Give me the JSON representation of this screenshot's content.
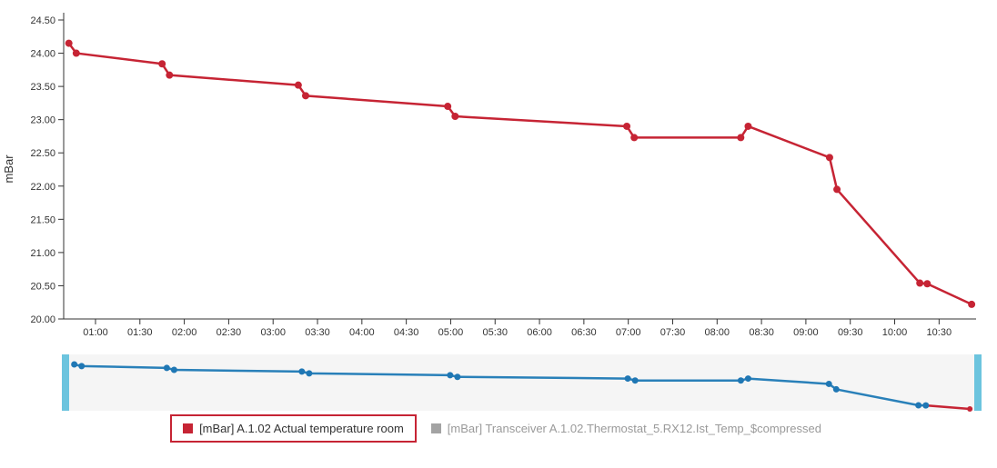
{
  "chart": {
    "colors": {
      "series_red": "#c62434",
      "series_blue": "#2980b9",
      "navigator_marker_blue": "#1f77b4",
      "navigator_handle": "#6cc4de",
      "navigator_bg": "#f5f5f5",
      "axis": "#333333",
      "tick_label": "#333333",
      "legend_active_text": "#333333",
      "legend_inactive_text": "#9a9a9a",
      "legend_inactive_marker": "#a3a3a3",
      "legend_box_border": "#c62434"
    }
  },
  "chart_data": {
    "type": "line",
    "title": "",
    "xlabel": "",
    "ylabel": "mBar",
    "ylim": [
      20.0,
      24.5
    ],
    "xlim": [
      "00:38",
      "10:55"
    ],
    "grid": false,
    "legend_position": "bottom",
    "x": [
      "00:42",
      "00:47",
      "01:45",
      "01:50",
      "03:17",
      "03:22",
      "04:58",
      "05:03",
      "06:59",
      "07:04",
      "08:16",
      "08:21",
      "09:16",
      "09:21",
      "10:17",
      "10:22",
      "10:52"
    ],
    "series": [
      {
        "name": "[mBar] A.1.02 Actual temperature room",
        "color": "#c62434",
        "values": [
          24.15,
          24.0,
          23.84,
          23.67,
          23.52,
          23.36,
          23.2,
          23.05,
          22.9,
          22.73,
          22.73,
          22.9,
          22.43,
          21.95,
          20.54,
          20.53,
          20.22
        ]
      }
    ],
    "y_ticks": [
      "20.00",
      "20.50",
      "21.00",
      "21.50",
      "22.00",
      "22.50",
      "23.00",
      "23.50",
      "24.00",
      "24.50"
    ],
    "x_ticks": [
      "01:00",
      "01:30",
      "02:00",
      "02:30",
      "03:00",
      "03:30",
      "04:00",
      "04:30",
      "05:00",
      "05:30",
      "06:00",
      "06:30",
      "07:00",
      "07:30",
      "08:00",
      "08:30",
      "09:00",
      "09:30",
      "10:00",
      "10:30"
    ],
    "navigator": {
      "line_color": "#2980b9",
      "end_segment_color": "#c62434",
      "handle_color": "#6cc4de",
      "background": "#f5f5f5",
      "range": "full"
    }
  },
  "legend": {
    "items": [
      {
        "label": "[mBar] A.1.02 Actual temperature room",
        "color": "#c62434",
        "selected": true
      },
      {
        "label": "[mBar] Transceiver A.1.02.Thermostat_5.RX12.Ist_Temp_$compressed",
        "color": "#a3a3a3",
        "selected": false
      }
    ]
  }
}
